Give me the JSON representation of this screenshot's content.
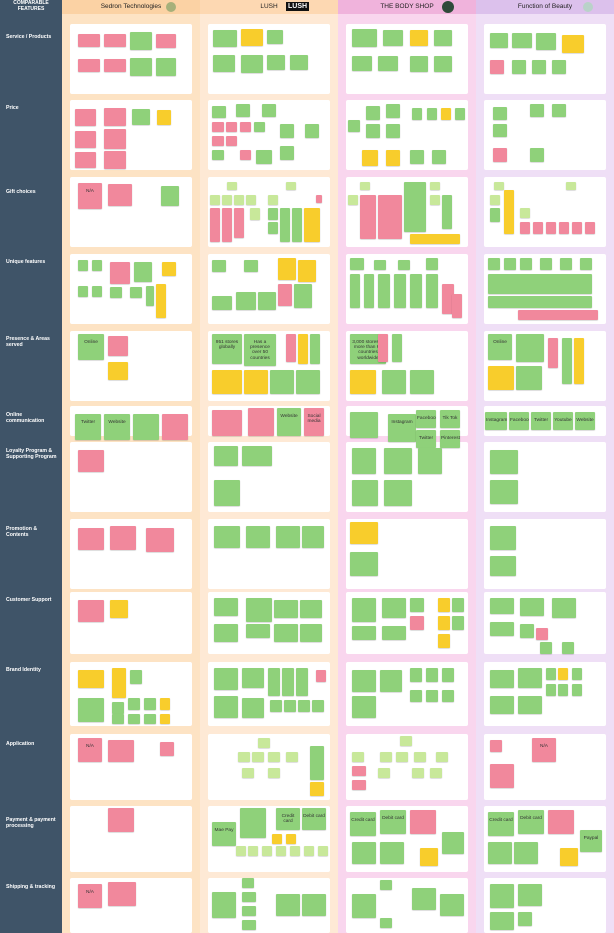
{
  "header": {
    "left_title": "COMPARABLE FEATURES",
    "columns": [
      {
        "name": "Sedron Technologies",
        "bg": "#fde3c4"
      },
      {
        "name": "LUSH",
        "bg": "#fee6cf",
        "logo_text": "LUSH"
      },
      {
        "name": "THE BODY SHOP",
        "bg": "#f6cde8"
      },
      {
        "name": "Function of Beauty",
        "bg": "#ead8f2"
      }
    ]
  },
  "rows": [
    {
      "label": "Service / Products"
    },
    {
      "label": "Price"
    },
    {
      "label": "Gift choices"
    },
    {
      "label": "Unique features"
    },
    {
      "label": "Presence & Areas served"
    },
    {
      "label": "Online communication"
    },
    {
      "label": "Loyalty Program & Supporting Program"
    },
    {
      "label": "Promotion & Contents"
    },
    {
      "label": "Customer Support"
    },
    {
      "label": "Brand Identity"
    },
    {
      "label": "Application"
    },
    {
      "label": "Payment & payment processing"
    },
    {
      "label": "Shipping & tracking"
    }
  ],
  "notes": {
    "na": "N/A",
    "online": "Online",
    "twitter": "Twitter",
    "website": "Website",
    "social_media": "Social media",
    "instagram": "Instagram",
    "facebook": "Facebook",
    "tiktok": "Tik Tok",
    "twitter2": "Twitter",
    "pinterest": "Pinterest",
    "fob_instagram": "Instagram",
    "fob_facebook": "Facebook",
    "fob_twitter": "Twitter",
    "fob_youtube": "Youtube",
    "fob_website": "Website",
    "lush_stores": "951 stores globally",
    "lush_presence": "Has a presence over 50 countries",
    "bodyshop_stores": "3,000 stores in more than 66 countries worldwide",
    "fob_online": "Online",
    "fob_app_na": "N/A",
    "lush_pay": "Mae Pay",
    "lush_credit": "Credit card",
    "lush_debit": "Debit card",
    "bs_credit": "Credit card",
    "bs_debit": "Debit card",
    "fob_credit": "Credit card",
    "fob_debit": "Debit card",
    "fob_paypal": "Paypal",
    "ship_na": "N/A"
  }
}
